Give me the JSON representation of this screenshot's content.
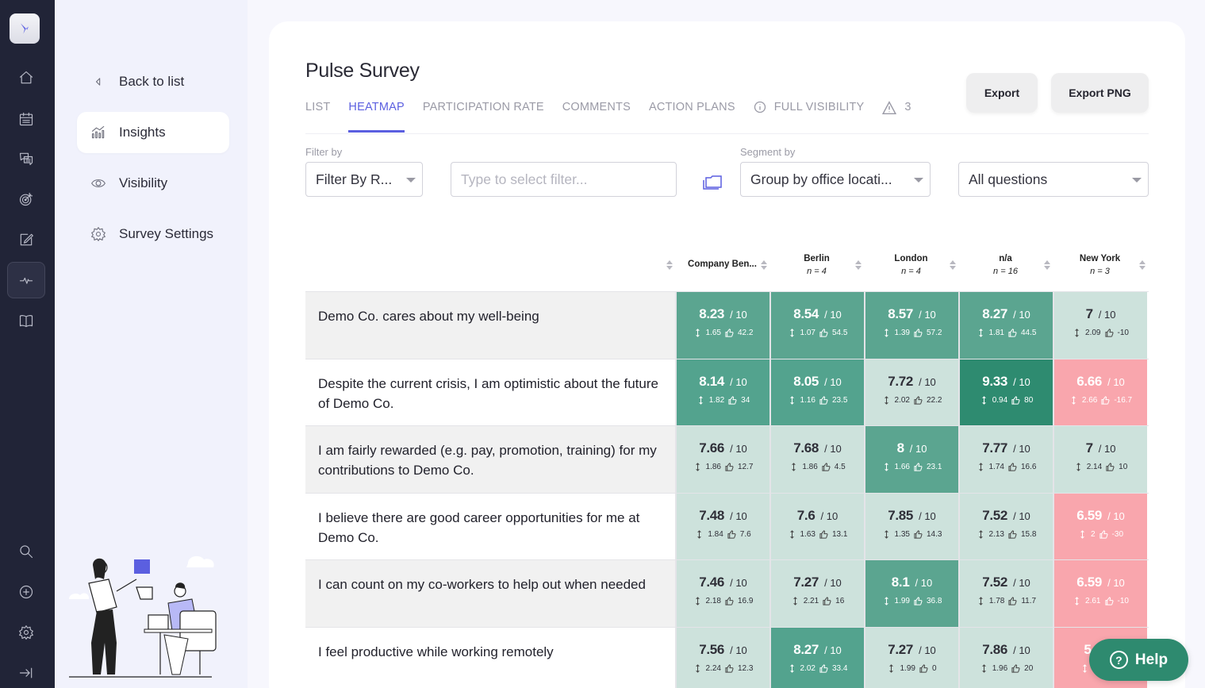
{
  "rail": {
    "items": [
      "home-icon",
      "calendar-icon",
      "chat-icon",
      "target-icon",
      "edit-icon",
      "pulse-icon",
      "book-icon"
    ],
    "bottom_items": [
      "search-icon",
      "plus-circle-icon",
      "gear-icon",
      "collapse-icon"
    ],
    "active": "pulse-icon"
  },
  "subnav": {
    "back_label": "Back to list",
    "items": [
      {
        "label": "Insights",
        "icon": "chart-icon",
        "active": true
      },
      {
        "label": "Visibility",
        "icon": "eye-icon",
        "active": false
      },
      {
        "label": "Survey Settings",
        "icon": "gear-icon",
        "active": false
      }
    ]
  },
  "page": {
    "title": "Pulse Survey",
    "tabs": [
      {
        "label": "LIST",
        "active": false
      },
      {
        "label": "HEATMAP",
        "active": true
      },
      {
        "label": "PARTICIPATION RATE",
        "active": false
      },
      {
        "label": "COMMENTS",
        "active": false
      },
      {
        "label": "ACTION PLANS",
        "active": false
      },
      {
        "label": "FULL VISIBILITY",
        "active": false,
        "icon": "info-icon"
      },
      {
        "label": "3",
        "active": false,
        "icon": "warning-icon"
      }
    ],
    "export_label": "Export",
    "export_png_label": "Export PNG"
  },
  "filters": {
    "filter_by_label": "Filter by",
    "filter_by_value": "Filter By R...",
    "filter_input_placeholder": "Type to select filter...",
    "segment_by_label": "Segment by",
    "segment_by_value": "Group by office locati...",
    "questions_value": "All questions"
  },
  "heatmap": {
    "columns": [
      {
        "name": "Company Ben...",
        "n": ""
      },
      {
        "name": "Berlin",
        "n": "n = 4"
      },
      {
        "name": "London",
        "n": "n = 4"
      },
      {
        "name": "n/a",
        "n": "n = 16"
      },
      {
        "name": "New York",
        "n": "n = 3"
      }
    ],
    "rows": [
      {
        "question": "Demo Co. cares about my well-being",
        "cells": [
          {
            "score": "8.23",
            "sd": "1.65",
            "delta": "42.2",
            "level": "mid"
          },
          {
            "score": "8.54",
            "sd": "1.07",
            "delta": "54.5",
            "level": "mid"
          },
          {
            "score": "8.57",
            "sd": "1.39",
            "delta": "57.2",
            "level": "mid"
          },
          {
            "score": "8.27",
            "sd": "1.81",
            "delta": "44.5",
            "level": "mid"
          },
          {
            "score": "7",
            "sd": "2.09",
            "delta": "-10",
            "level": "light"
          }
        ]
      },
      {
        "question": "Despite the current crisis, I am optimistic about the future of Demo Co.",
        "cells": [
          {
            "score": "8.14",
            "sd": "1.82",
            "delta": "34",
            "level": "mid2"
          },
          {
            "score": "8.05",
            "sd": "1.16",
            "delta": "23.5",
            "level": "mid2"
          },
          {
            "score": "7.72",
            "sd": "2.02",
            "delta": "22.2",
            "level": "light"
          },
          {
            "score": "9.33",
            "sd": "0.94",
            "delta": "80",
            "level": "dark"
          },
          {
            "score": "6.66",
            "sd": "2.66",
            "delta": "-16.7",
            "level": "red"
          }
        ]
      },
      {
        "question": "I am fairly rewarded (e.g. pay, promotion, training) for my contributions to Demo Co.",
        "cells": [
          {
            "score": "7.66",
            "sd": "1.86",
            "delta": "12.7",
            "level": "light"
          },
          {
            "score": "7.68",
            "sd": "1.86",
            "delta": "4.5",
            "level": "light"
          },
          {
            "score": "8",
            "sd": "1.66",
            "delta": "23.1",
            "level": "mid"
          },
          {
            "score": "7.77",
            "sd": "1.74",
            "delta": "16.6",
            "level": "light"
          },
          {
            "score": "7",
            "sd": "2.14",
            "delta": "10",
            "level": "light"
          }
        ]
      },
      {
        "question": "I believe there are good career opportunities for me at Demo Co.",
        "cells": [
          {
            "score": "7.48",
            "sd": "1.84",
            "delta": "7.6",
            "level": "light"
          },
          {
            "score": "7.6",
            "sd": "1.63",
            "delta": "13.1",
            "level": "light"
          },
          {
            "score": "7.85",
            "sd": "1.35",
            "delta": "14.3",
            "level": "light"
          },
          {
            "score": "7.52",
            "sd": "2.13",
            "delta": "15.8",
            "level": "light"
          },
          {
            "score": "6.59",
            "sd": "2",
            "delta": "-30",
            "level": "red"
          }
        ]
      },
      {
        "question": "I can count on my co-workers to help out when needed",
        "cells": [
          {
            "score": "7.46",
            "sd": "2.18",
            "delta": "16.9",
            "level": "light"
          },
          {
            "score": "7.27",
            "sd": "2.21",
            "delta": "16",
            "level": "light"
          },
          {
            "score": "8.1",
            "sd": "1.99",
            "delta": "36.8",
            "level": "mid"
          },
          {
            "score": "7.52",
            "sd": "1.78",
            "delta": "11.7",
            "level": "light"
          },
          {
            "score": "6.59",
            "sd": "2.61",
            "delta": "-10",
            "level": "red"
          }
        ]
      },
      {
        "question": "I feel productive while working remotely",
        "cells": [
          {
            "score": "7.56",
            "sd": "2.24",
            "delta": "12.3",
            "level": "light"
          },
          {
            "score": "8.27",
            "sd": "2.02",
            "delta": "33.4",
            "level": "mid2"
          },
          {
            "score": "7.27",
            "sd": "1.99",
            "delta": "0",
            "level": "light"
          },
          {
            "score": "7.86",
            "sd": "1.96",
            "delta": "20",
            "level": "light"
          },
          {
            "score": "5.",
            "sd": "2.7",
            "delta": "",
            "level": "red"
          }
        ]
      }
    ],
    "scale_suffix": "/ 10"
  },
  "colors": {
    "accent": "#5b5fe0",
    "rail_bg": "#212437",
    "cell_dark": "#2e8b70",
    "cell_mid": "#5ba590",
    "cell_light": "#cde2dc",
    "cell_red": "#f9a6ad",
    "help_bg": "#2e8a6f"
  },
  "help": {
    "label": "Help"
  }
}
